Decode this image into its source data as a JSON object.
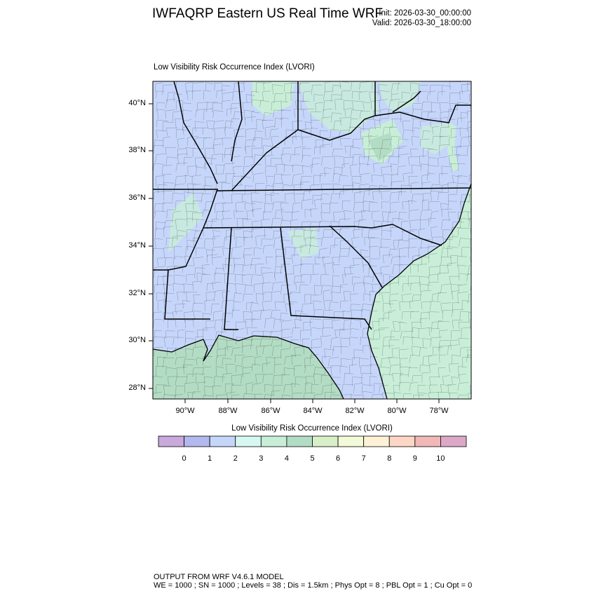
{
  "header": {
    "title": "IWFAQRP Eastern US Real Time WRF",
    "init": "Init: 2026-03-30_00:00:00",
    "valid": "Valid: 2026-03-30_18:00:00"
  },
  "map": {
    "subtitle": "Low Visibility Risk Occurrence Index   (LVORI)",
    "lat_ticks": [
      "40°N",
      "38°N",
      "36°N",
      "34°N",
      "32°N",
      "30°N",
      "28°N"
    ],
    "lon_ticks": [
      "90°W",
      "88°W",
      "86°W",
      "84°W",
      "82°W",
      "80°W",
      "78°W"
    ],
    "land_color": "#c6d6fb",
    "ocean_color": "#c8eed8",
    "gulf_color": "#b3dcc4"
  },
  "colorbar": {
    "title": "Low Visibility Risk Occurrence Index  (LVORI)",
    "colors": [
      "#c9a8dc",
      "#b3b8ee",
      "#c6d6fb",
      "#d6f8f0",
      "#c8eed8",
      "#b3dcc4",
      "#d8f0c8",
      "#f2fad8",
      "#fef2d6",
      "#fdd6c6",
      "#f0b8b6",
      "#dca8c8"
    ],
    "labels": [
      "0",
      "1",
      "2",
      "3",
      "4",
      "5",
      "6",
      "7",
      "8",
      "9",
      "10"
    ]
  },
  "footer": {
    "line1": "OUTPUT FROM WRF V4.6.1 MODEL",
    "line2": "WE = 1000 ; SN = 1000 ; Levels = 38 ; Dis = 1.5km ; Phys Opt = 8 ; PBL Opt = 1 ; Cu Opt = 0"
  }
}
